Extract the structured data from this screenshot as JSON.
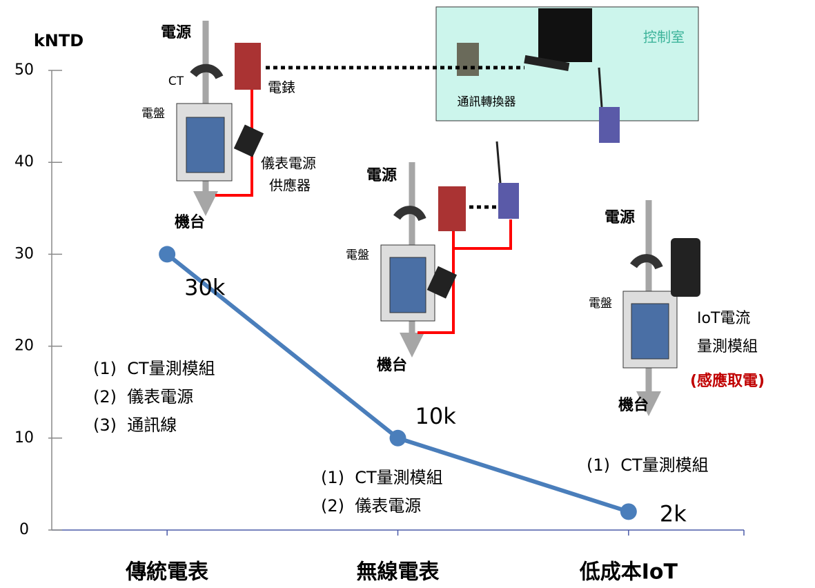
{
  "chart_data": {
    "type": "line",
    "y_label": "kNTD",
    "categories": [
      "傳統電表",
      "無線電表",
      "低成本IoT"
    ],
    "values": [
      30,
      10,
      2
    ],
    "value_labels": [
      "30k",
      "10k",
      "2k"
    ],
    "color": "#4a7ebb",
    "ylim": [
      0,
      50
    ],
    "yticks": [
      0,
      10,
      20,
      30,
      40,
      50
    ],
    "notes": [
      [
        "(1)  CT量測模組",
        "(2)  儀表電源",
        "(3)  通訊線"
      ],
      [
        "(1)  CT量測模組",
        "(2)  儀表電源"
      ],
      [
        "(1)  CT量測模組"
      ]
    ],
    "illustration_labels": [
      [
        "電源",
        "CT",
        "電錶",
        "電盤",
        "儀表電源",
        "供應器",
        "機台",
        "控制室",
        "通訊轉換器"
      ],
      [
        "電源",
        "電盤",
        "機台"
      ],
      [
        "電源",
        "電盤",
        "IoT電流",
        "量測模組",
        "(感應取電)",
        "機台"
      ]
    ]
  }
}
